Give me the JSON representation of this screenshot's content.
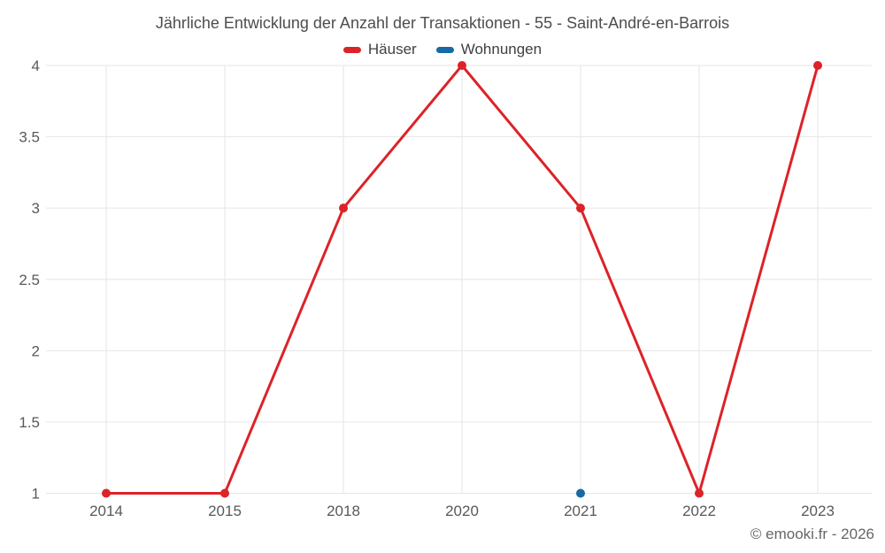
{
  "chart_data": {
    "type": "line",
    "title": "Jährliche Entwicklung der Anzahl der Transaktionen - 55 - Saint-André-en-Barrois",
    "categories": [
      "2014",
      "2015",
      "2018",
      "2020",
      "2021",
      "2022",
      "2023"
    ],
    "series": [
      {
        "name": "Häuser",
        "color": "#dc2328",
        "values": [
          1,
          1,
          3,
          4,
          3,
          1,
          4
        ]
      },
      {
        "name": "Wohnungen",
        "color": "#176aa3",
        "values": [
          null,
          null,
          null,
          null,
          1,
          null,
          null
        ]
      }
    ],
    "ylim": [
      1,
      4
    ],
    "ytick_step": 0.5,
    "ytick_labels": [
      "1",
      "1.5",
      "2",
      "2.5",
      "3",
      "3.5",
      "4"
    ],
    "grid": true,
    "legend_position": "top"
  },
  "footer": {
    "credit": "© emooki.fr - 2026"
  },
  "colors": {
    "grid": "#e6e6e6",
    "tick_label": "#595959",
    "title": "#4d4d4d",
    "footer": "#666666"
  }
}
